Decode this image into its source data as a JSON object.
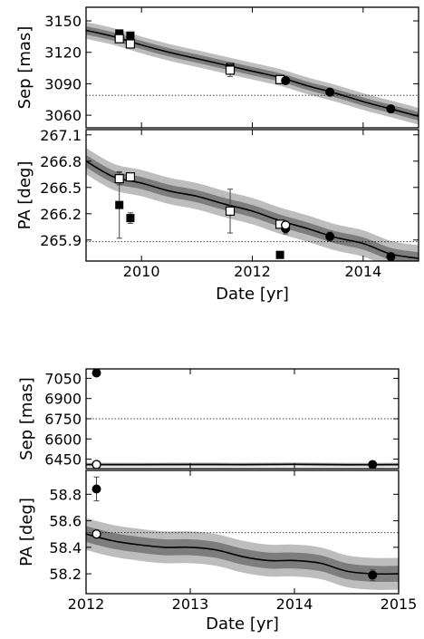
{
  "chart_data": [
    {
      "type": "line",
      "panel": "upper-system",
      "x_range": [
        2009.0,
        2015.0
      ],
      "xlabel": "Date [yr]",
      "xticks": [
        "2010",
        "2012",
        "2014"
      ],
      "subplots": [
        {
          "ylabel": "Sep [mas]",
          "ylim": [
            3048,
            3163
          ],
          "yticks": [
            "3150",
            "3120",
            "3090",
            "3060"
          ],
          "reference_line_y": 3079,
          "model": {
            "x": [
              2009.0,
              2009.5,
              2010.0,
              2010.5,
              2011.0,
              2011.5,
              2012.0,
              2012.5,
              2013.0,
              2013.5,
              2014.0,
              2014.5,
              2015.0
            ],
            "y": [
              3141,
              3135,
              3127,
              3120,
              3114,
              3108,
              3102,
              3096,
              3088,
              3081,
              3073,
              3066,
              3059
            ],
            "band_inner": 4,
            "band_outer": 8
          },
          "series": [
            {
              "marker": "filled-square",
              "points": [
                [
                  2009.6,
                  3138,
                  3
                ],
                [
                  2009.8,
                  3136,
                  3
                ],
                [
                  2011.6,
                  3106,
                  3
                ]
              ]
            },
            {
              "marker": "open-square",
              "points": [
                [
                  2009.6,
                  3133,
                  3
                ],
                [
                  2009.8,
                  3128,
                  3
                ],
                [
                  2011.6,
                  3103,
                  6
                ],
                [
                  2012.5,
                  3094,
                  3
                ]
              ]
            },
            {
              "marker": "filled-circle",
              "points": [
                [
                  2012.6,
                  3093,
                  3
                ],
                [
                  2013.4,
                  3082,
                  2
                ],
                [
                  2014.5,
                  3066,
                  2
                ]
              ]
            }
          ]
        },
        {
          "ylabel": "PA [deg]",
          "ylim": [
            265.66,
            267.16
          ],
          "yticks": [
            "267.1",
            "266.8",
            "266.5",
            "266.2",
            "265.9"
          ],
          "reference_line_y": 265.88,
          "model": {
            "x": [
              2009.0,
              2009.5,
              2010.0,
              2010.5,
              2011.0,
              2011.5,
              2012.0,
              2012.5,
              2013.0,
              2013.5,
              2014.0,
              2014.5,
              2015.0
            ],
            "y": [
              266.8,
              266.62,
              266.55,
              266.46,
              266.4,
              266.31,
              266.23,
              266.12,
              266.03,
              265.93,
              265.86,
              265.74,
              265.69
            ],
            "band_inner": 0.07,
            "band_outer": 0.15
          },
          "series": [
            {
              "marker": "filled-square",
              "points": [
                [
                  2009.6,
                  266.3,
                  0.38
                ],
                [
                  2009.8,
                  266.15,
                  0.06
                ],
                [
                  2011.6,
                  266.23,
                  0.25
                ],
                [
                  2012.5,
                  265.73,
                  0.0
                ]
              ]
            },
            {
              "marker": "open-square",
              "points": [
                [
                  2009.6,
                  266.6,
                  0.07
                ],
                [
                  2009.8,
                  266.62,
                  0.03
                ],
                [
                  2011.6,
                  266.23,
                  0.04
                ],
                [
                  2012.5,
                  266.08,
                  0.03
                ]
              ]
            },
            {
              "marker": "filled-circle",
              "points": [
                [
                  2012.6,
                  266.03,
                  0.06
                ],
                [
                  2013.4,
                  265.94,
                  0.05
                ],
                [
                  2014.5,
                  265.71,
                  0.03
                ]
              ]
            },
            {
              "marker": "open-circle",
              "points": [
                [
                  2012.6,
                  266.07,
                  0.04
                ]
              ]
            }
          ]
        }
      ]
    },
    {
      "type": "line",
      "panel": "lower-system",
      "x_range": [
        2012.0,
        2015.0
      ],
      "xlabel": "Date [yr]",
      "xticks": [
        "2012",
        "2013",
        "2014",
        "2015"
      ],
      "subplots": [
        {
          "ylabel": "Sep [mas]",
          "ylim": [
            6380,
            7120
          ],
          "yticks": [
            "7050",
            "6900",
            "6750",
            "6600",
            "6450"
          ],
          "reference_line_y": 6750,
          "model": {
            "x": [
              2012.0,
              2012.5,
              2013.0,
              2013.5,
              2014.0,
              2014.5,
              2015.0
            ],
            "y": [
              6410,
              6410,
              6411,
              6410,
              6412,
              6409,
              6410
            ],
            "band_inner": 6,
            "band_outer": 14
          },
          "series": [
            {
              "marker": "filled-circle",
              "points": [
                [
                  2012.1,
                  7090,
                  0
                ],
                [
                  2014.75,
                  6410,
                  0
                ]
              ]
            },
            {
              "marker": "open-circle",
              "points": [
                [
                  2012.1,
                  6410,
                  0
                ]
              ]
            }
          ]
        },
        {
          "ylabel": "PA [deg]",
          "ylim": [
            58.05,
            58.98
          ],
          "yticks": [
            "58.8",
            "58.6",
            "58.4",
            "58.2"
          ],
          "reference_line_y": 58.51,
          "model": {
            "x": [
              2012.0,
              2012.25,
              2012.5,
              2012.75,
              2013.0,
              2013.25,
              2013.5,
              2013.75,
              2014.0,
              2014.25,
              2014.5,
              2014.75,
              2015.0
            ],
            "y": [
              58.5,
              58.45,
              58.42,
              58.4,
              58.4,
              58.38,
              58.33,
              58.3,
              58.3,
              58.28,
              58.22,
              58.2,
              58.2
            ],
            "band_inner": 0.06,
            "band_outer": 0.12
          },
          "series": [
            {
              "marker": "filled-circle",
              "points": [
                [
                  2012.1,
                  58.84,
                  0.09
                ],
                [
                  2014.75,
                  58.19,
                  0.04
                ]
              ]
            },
            {
              "marker": "open-circle",
              "points": [
                [
                  2012.1,
                  58.5,
                  0.0
                ]
              ]
            }
          ]
        }
      ]
    }
  ]
}
